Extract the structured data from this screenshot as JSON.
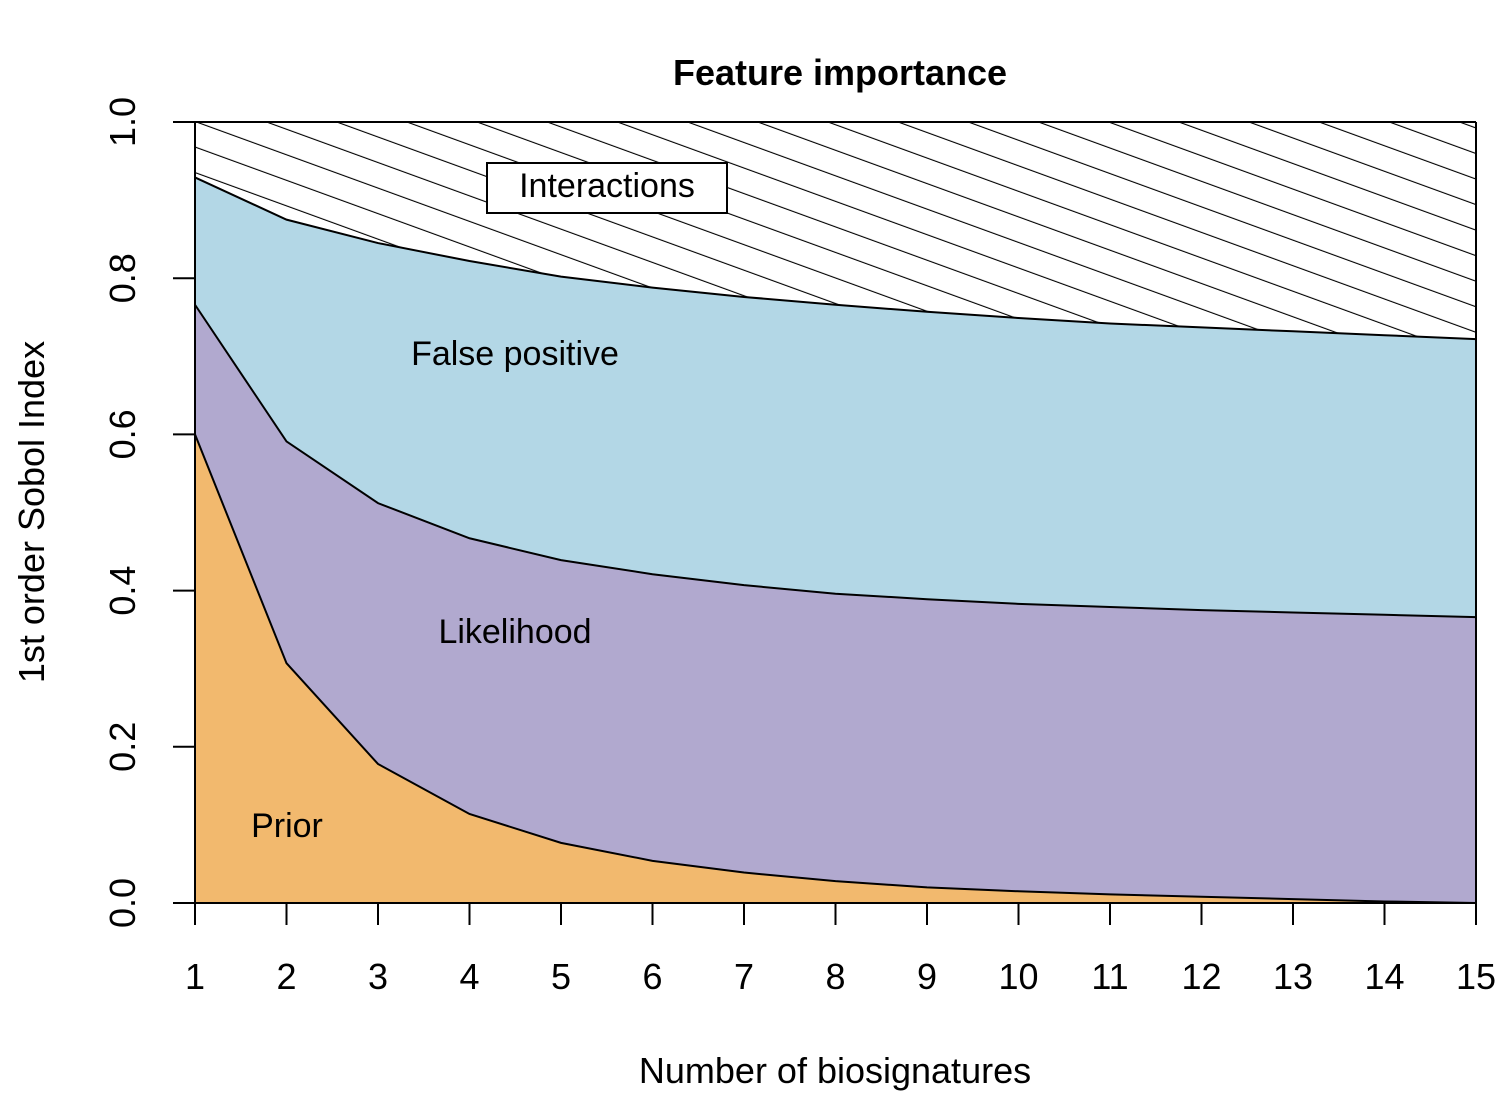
{
  "chart_data": {
    "type": "area",
    "stacked": true,
    "title": "Feature importance",
    "xlabel": "Number of biosignatures",
    "ylabel": "1st order Sobol Index",
    "x": [
      1,
      2,
      3,
      4,
      5,
      6,
      7,
      8,
      9,
      10,
      11,
      12,
      13,
      14,
      15
    ],
    "xlim": [
      1,
      15
    ],
    "ylim": [
      0,
      1
    ],
    "x_ticks": [
      "1",
      "2",
      "3",
      "4",
      "5",
      "6",
      "7",
      "8",
      "9",
      "10",
      "11",
      "12",
      "13",
      "14",
      "15"
    ],
    "y_ticks": [
      "0.0",
      "0.2",
      "0.4",
      "0.6",
      "0.8",
      "1.0"
    ],
    "grid": false,
    "legend": "none",
    "series": [
      {
        "name": "Prior",
        "color": "#f2b96e",
        "cumulative": [
          0.6,
          0.307,
          0.178,
          0.114,
          0.077,
          0.054,
          0.039,
          0.028,
          0.02,
          0.015,
          0.011,
          0.008,
          0.005,
          0.002,
          0.0
        ]
      },
      {
        "name": "Likelihood",
        "color": "#b1a9cf",
        "cumulative": [
          0.766,
          0.591,
          0.512,
          0.467,
          0.439,
          0.421,
          0.407,
          0.396,
          0.389,
          0.383,
          0.379,
          0.375,
          0.372,
          0.369,
          0.366
        ]
      },
      {
        "name": "False positive",
        "color": "#b3d7e6",
        "cumulative": [
          0.929,
          0.875,
          0.845,
          0.822,
          0.802,
          0.788,
          0.776,
          0.766,
          0.757,
          0.749,
          0.742,
          0.737,
          0.732,
          0.727,
          0.722
        ]
      },
      {
        "name": "Interactions",
        "pattern": "diagonal-hatch",
        "color": "#ffffff",
        "cumulative": [
          1.0,
          1.0,
          1.0,
          1.0,
          1.0,
          1.0,
          1.0,
          1.0,
          1.0,
          1.0,
          1.0,
          1.0,
          1.0,
          1.0,
          1.0
        ]
      }
    ]
  }
}
